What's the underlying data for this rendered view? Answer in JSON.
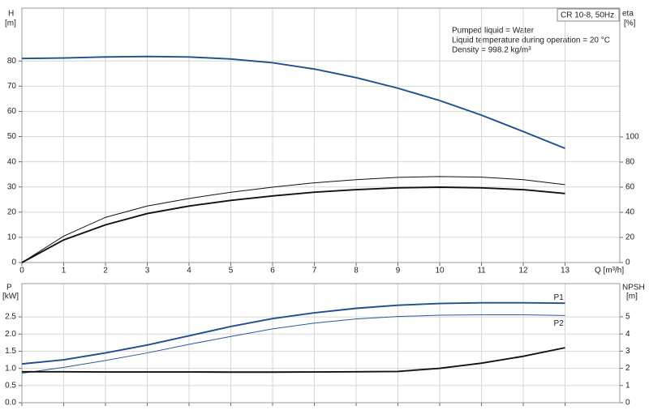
{
  "chart_data": [
    {
      "type": "line",
      "title": "CR 10-8, 50Hz",
      "annotations": [
        "Pumped liquid = Water",
        "Liquid temperature during operation = 20 °C",
        "Density = 998.2 kg/m³"
      ],
      "ylabel": "H",
      "yunit": "[m]",
      "y2label": "eta",
      "y2unit": "[%]",
      "xlabel": "Q [m³/h]",
      "show_xtick_labels": true,
      "grid": true,
      "x": [
        0,
        1,
        2,
        3,
        4,
        5,
        6,
        7,
        8,
        9,
        10,
        11,
        12,
        13
      ],
      "xlim": [
        0,
        14.31
      ],
      "xticks": [
        0,
        1,
        2,
        3,
        4,
        5,
        6,
        7,
        8,
        9,
        10,
        11,
        12,
        13
      ],
      "ylim": [
        0,
        101
      ],
      "yticks": [
        0,
        10,
        20,
        30,
        40,
        50,
        60,
        70,
        80
      ],
      "y2lim": [
        0,
        202.6
      ],
      "y2ticks": [
        0,
        20,
        40,
        60,
        80,
        100
      ],
      "series": [
        {
          "color": "#1f4e8c",
          "style": "thick",
          "values": [
            81,
            81.2,
            81.6,
            81.8,
            81.6,
            80.8,
            79.3,
            76.8,
            73.4,
            69.2,
            64.3,
            58.5,
            52,
            45.3
          ]
        },
        {
          "color": "#111111",
          "style": "thin",
          "axis": "y2",
          "values": [
            0,
            21,
            36,
            45,
            51,
            56,
            60,
            63.5,
            66,
            67.8,
            68.5,
            68,
            66,
            62
          ]
        },
        {
          "color": "#111111",
          "style": "thick",
          "axis": "y2",
          "values": [
            0,
            18,
            30,
            39,
            45,
            49.5,
            53,
            56,
            58,
            59.5,
            60,
            59.5,
            58,
            55
          ]
        }
      ]
    },
    {
      "type": "line",
      "ylabel": "P",
      "yunit": "[kW]",
      "y2label": "NPSH",
      "y2unit": "[m]",
      "show_xtick_labels": false,
      "grid": true,
      "x": [
        0,
        1,
        2,
        3,
        4,
        5,
        6,
        7,
        8,
        9,
        10,
        11,
        12,
        13
      ],
      "xlim": [
        0,
        14.31
      ],
      "xticks": [
        0,
        1,
        2,
        3,
        4,
        5,
        6,
        7,
        8,
        9,
        10,
        11,
        12,
        13
      ],
      "ylim": [
        0,
        3.47
      ],
      "yticks": [
        {
          "value": 0,
          "label": "0.0"
        },
        {
          "value": 0.5,
          "label": "0.5"
        },
        {
          "value": 1,
          "label": "1.0"
        },
        {
          "value": 1.5,
          "label": "1.5"
        },
        {
          "value": 2,
          "label": "2.0"
        },
        {
          "value": 2.5,
          "label": "2.5"
        }
      ],
      "y2lim": [
        0,
        6.93
      ],
      "y2ticks": [
        0,
        1,
        2,
        3,
        4,
        5
      ],
      "series": [
        {
          "name": "P1",
          "color": "#1f4e8c",
          "style": "thick",
          "values": [
            1.13,
            1.25,
            1.45,
            1.68,
            1.95,
            2.22,
            2.45,
            2.62,
            2.75,
            2.84,
            2.89,
            2.91,
            2.91,
            2.9
          ]
        },
        {
          "name": "P2",
          "color": "#2a5a9a",
          "style": "thin",
          "values": [
            0.86,
            1.03,
            1.23,
            1.45,
            1.7,
            1.93,
            2.15,
            2.32,
            2.44,
            2.51,
            2.55,
            2.56,
            2.56,
            2.54
          ]
        },
        {
          "color": "#111111",
          "style": "thick",
          "axis": "y2",
          "values": [
            1.8,
            1.8,
            1.79,
            1.79,
            1.79,
            1.78,
            1.78,
            1.79,
            1.8,
            1.82,
            2.0,
            2.3,
            2.7,
            3.2
          ]
        }
      ]
    }
  ]
}
